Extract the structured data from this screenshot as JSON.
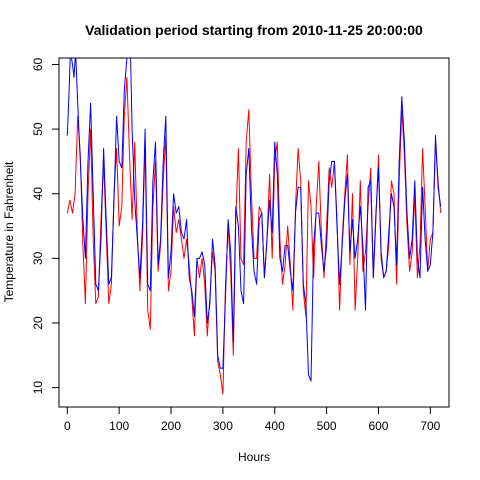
{
  "chart_data": {
    "type": "line",
    "title": "Validation period starting from 2010-11-25 20:00:00",
    "xlabel": "Hours",
    "ylabel": "Temperature in Fahrenheit",
    "xlim": [
      -16,
      736
    ],
    "ylim": [
      7,
      61
    ],
    "x_ticks": [
      0,
      100,
      200,
      300,
      400,
      500,
      600,
      700
    ],
    "y_ticks": [
      10,
      20,
      30,
      40,
      50,
      60
    ],
    "grid": false,
    "series": [
      {
        "color": "#ff0000",
        "points": [
          [
            0,
            37
          ],
          [
            5,
            39
          ],
          [
            10,
            37
          ],
          [
            15,
            40
          ],
          [
            20,
            52
          ],
          [
            25,
            46
          ],
          [
            30,
            32
          ],
          [
            35,
            23
          ],
          [
            40,
            40
          ],
          [
            45,
            50
          ],
          [
            50,
            33
          ],
          [
            55,
            23
          ],
          [
            60,
            24
          ],
          [
            65,
            36
          ],
          [
            70,
            45
          ],
          [
            75,
            34
          ],
          [
            80,
            23
          ],
          [
            85,
            26
          ],
          [
            90,
            40
          ],
          [
            95,
            47
          ],
          [
            100,
            35
          ],
          [
            105,
            38
          ],
          [
            110,
            52
          ],
          [
            115,
            58
          ],
          [
            120,
            46
          ],
          [
            125,
            36
          ],
          [
            130,
            48
          ],
          [
            135,
            34
          ],
          [
            140,
            25
          ],
          [
            145,
            33
          ],
          [
            150,
            48
          ],
          [
            155,
            22
          ],
          [
            160,
            19
          ],
          [
            165,
            38
          ],
          [
            170,
            45
          ],
          [
            175,
            28
          ],
          [
            180,
            32
          ],
          [
            185,
            42
          ],
          [
            190,
            49
          ],
          [
            195,
            25
          ],
          [
            200,
            28
          ],
          [
            205,
            38
          ],
          [
            210,
            34
          ],
          [
            215,
            36
          ],
          [
            220,
            33
          ],
          [
            225,
            30
          ],
          [
            230,
            33
          ],
          [
            235,
            29
          ],
          [
            240,
            24
          ],
          [
            245,
            18
          ],
          [
            250,
            30
          ],
          [
            255,
            27
          ],
          [
            260,
            30
          ],
          [
            265,
            26
          ],
          [
            270,
            18
          ],
          [
            275,
            24
          ],
          [
            280,
            31
          ],
          [
            285,
            28
          ],
          [
            290,
            14
          ],
          [
            295,
            12
          ],
          [
            300,
            9
          ],
          [
            305,
            26
          ],
          [
            310,
            35
          ],
          [
            315,
            28
          ],
          [
            320,
            15
          ],
          [
            325,
            36
          ],
          [
            330,
            47
          ],
          [
            335,
            30
          ],
          [
            340,
            29
          ],
          [
            345,
            48
          ],
          [
            350,
            53
          ],
          [
            355,
            40
          ],
          [
            360,
            30
          ],
          [
            365,
            30
          ],
          [
            370,
            38
          ],
          [
            375,
            37
          ],
          [
            380,
            27
          ],
          [
            385,
            33
          ],
          [
            390,
            43
          ],
          [
            395,
            30
          ],
          [
            400,
            45
          ],
          [
            405,
            48
          ],
          [
            410,
            33
          ],
          [
            415,
            26
          ],
          [
            420,
            29
          ],
          [
            425,
            35
          ],
          [
            430,
            29
          ],
          [
            435,
            22
          ],
          [
            440,
            38
          ],
          [
            445,
            47
          ],
          [
            450,
            42
          ],
          [
            455,
            25
          ],
          [
            460,
            21
          ],
          [
            465,
            42
          ],
          [
            470,
            38
          ],
          [
            475,
            27
          ],
          [
            480,
            38
          ],
          [
            485,
            45
          ],
          [
            490,
            34
          ],
          [
            495,
            27
          ],
          [
            500,
            35
          ],
          [
            505,
            44
          ],
          [
            510,
            41
          ],
          [
            515,
            45
          ],
          [
            520,
            36
          ],
          [
            525,
            22
          ],
          [
            530,
            33
          ],
          [
            535,
            40
          ],
          [
            540,
            46
          ],
          [
            545,
            29
          ],
          [
            550,
            40
          ],
          [
            555,
            22
          ],
          [
            560,
            30
          ],
          [
            565,
            42
          ],
          [
            570,
            28
          ],
          [
            575,
            31
          ],
          [
            580,
            38
          ],
          [
            585,
            44
          ],
          [
            590,
            27
          ],
          [
            595,
            36
          ],
          [
            600,
            46
          ],
          [
            605,
            30
          ],
          [
            610,
            27
          ],
          [
            615,
            28
          ],
          [
            620,
            32
          ],
          [
            625,
            42
          ],
          [
            630,
            40
          ],
          [
            635,
            26
          ],
          [
            640,
            42
          ],
          [
            645,
            53
          ],
          [
            650,
            46
          ],
          [
            655,
            35
          ],
          [
            660,
            28
          ],
          [
            665,
            31
          ],
          [
            670,
            40
          ],
          [
            675,
            27
          ],
          [
            680,
            32
          ],
          [
            685,
            47
          ],
          [
            690,
            38
          ],
          [
            695,
            28
          ],
          [
            700,
            33
          ],
          [
            705,
            34
          ],
          [
            710,
            48
          ],
          [
            715,
            42
          ],
          [
            720,
            37
          ]
        ]
      },
      {
        "color": "#0000ff",
        "points": [
          [
            0,
            49
          ],
          [
            3,
            55
          ],
          [
            6,
            62
          ],
          [
            10,
            60
          ],
          [
            13,
            58
          ],
          [
            16,
            62
          ],
          [
            20,
            54
          ],
          [
            25,
            45
          ],
          [
            30,
            36
          ],
          [
            35,
            30
          ],
          [
            40,
            45
          ],
          [
            45,
            54
          ],
          [
            50,
            40
          ],
          [
            55,
            26
          ],
          [
            60,
            25
          ],
          [
            65,
            33
          ],
          [
            70,
            47
          ],
          [
            75,
            36
          ],
          [
            80,
            26
          ],
          [
            85,
            27
          ],
          [
            90,
            39
          ],
          [
            95,
            52
          ],
          [
            100,
            45
          ],
          [
            105,
            44
          ],
          [
            110,
            56
          ],
          [
            115,
            61
          ],
          [
            118,
            62
          ],
          [
            122,
            61
          ],
          [
            125,
            50
          ],
          [
            130,
            39
          ],
          [
            135,
            33
          ],
          [
            140,
            27
          ],
          [
            145,
            35
          ],
          [
            150,
            50
          ],
          [
            155,
            26
          ],
          [
            160,
            25
          ],
          [
            165,
            42
          ],
          [
            170,
            48
          ],
          [
            175,
            29
          ],
          [
            180,
            33
          ],
          [
            185,
            45
          ],
          [
            190,
            52
          ],
          [
            195,
            27
          ],
          [
            200,
            31
          ],
          [
            205,
            40
          ],
          [
            210,
            37
          ],
          [
            215,
            38
          ],
          [
            220,
            34
          ],
          [
            225,
            33
          ],
          [
            230,
            36
          ],
          [
            235,
            27
          ],
          [
            240,
            25
          ],
          [
            245,
            21
          ],
          [
            250,
            30
          ],
          [
            255,
            30
          ],
          [
            260,
            31
          ],
          [
            265,
            29
          ],
          [
            270,
            20
          ],
          [
            275,
            23
          ],
          [
            280,
            33
          ],
          [
            285,
            29
          ],
          [
            290,
            15
          ],
          [
            295,
            13
          ],
          [
            300,
            13
          ],
          [
            305,
            24
          ],
          [
            310,
            36
          ],
          [
            315,
            31
          ],
          [
            320,
            17
          ],
          [
            325,
            38
          ],
          [
            330,
            35
          ],
          [
            335,
            25
          ],
          [
            340,
            23
          ],
          [
            345,
            43
          ],
          [
            350,
            47
          ],
          [
            355,
            35
          ],
          [
            360,
            28
          ],
          [
            365,
            26
          ],
          [
            370,
            36
          ],
          [
            375,
            37
          ],
          [
            380,
            27
          ],
          [
            385,
            33
          ],
          [
            390,
            39
          ],
          [
            395,
            34
          ],
          [
            400,
            48
          ],
          [
            405,
            43
          ],
          [
            410,
            30
          ],
          [
            415,
            28
          ],
          [
            420,
            32
          ],
          [
            425,
            32
          ],
          [
            430,
            28
          ],
          [
            435,
            25
          ],
          [
            440,
            37
          ],
          [
            445,
            41
          ],
          [
            450,
            41
          ],
          [
            455,
            26
          ],
          [
            460,
            23
          ],
          [
            465,
            12
          ],
          [
            470,
            11
          ],
          [
            475,
            32
          ],
          [
            480,
            37
          ],
          [
            485,
            37
          ],
          [
            490,
            32
          ],
          [
            495,
            28
          ],
          [
            500,
            32
          ],
          [
            505,
            42
          ],
          [
            510,
            45
          ],
          [
            515,
            45
          ],
          [
            520,
            35
          ],
          [
            525,
            26
          ],
          [
            530,
            32
          ],
          [
            535,
            39
          ],
          [
            540,
            43
          ],
          [
            545,
            31
          ],
          [
            550,
            36
          ],
          [
            555,
            30
          ],
          [
            560,
            33
          ],
          [
            565,
            38
          ],
          [
            570,
            32
          ],
          [
            575,
            22
          ],
          [
            580,
            41
          ],
          [
            585,
            42
          ],
          [
            590,
            27
          ],
          [
            595,
            37
          ],
          [
            600,
            44
          ],
          [
            605,
            31
          ],
          [
            610,
            27
          ],
          [
            615,
            28
          ],
          [
            620,
            34
          ],
          [
            625,
            40
          ],
          [
            630,
            38
          ],
          [
            635,
            29
          ],
          [
            640,
            45
          ],
          [
            645,
            55
          ],
          [
            650,
            48
          ],
          [
            655,
            37
          ],
          [
            660,
            30
          ],
          [
            665,
            33
          ],
          [
            670,
            42
          ],
          [
            675,
            30
          ],
          [
            680,
            27
          ],
          [
            685,
            41
          ],
          [
            690,
            33
          ],
          [
            695,
            28
          ],
          [
            700,
            29
          ],
          [
            705,
            34
          ],
          [
            710,
            49
          ],
          [
            715,
            41
          ],
          [
            720,
            38
          ]
        ]
      }
    ]
  }
}
